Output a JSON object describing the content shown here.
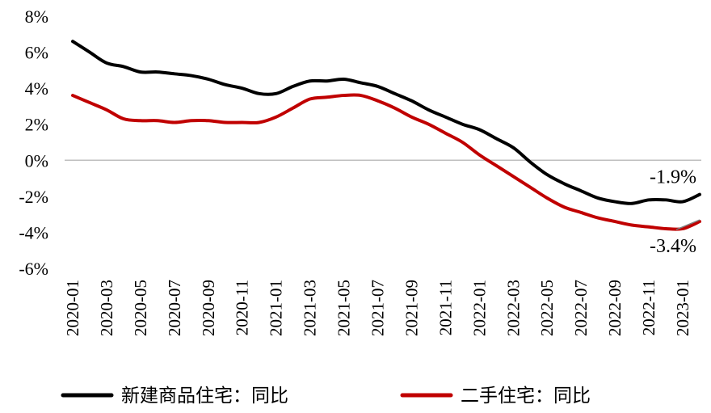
{
  "chart_data": {
    "type": "line",
    "ylim": [
      -6,
      8
    ],
    "yticks": [
      "8%",
      "6%",
      "4%",
      "2%",
      "0%",
      "-2%",
      "-4%",
      "-6%"
    ],
    "ytick_values": [
      8,
      6,
      4,
      2,
      0,
      -2,
      -4,
      -6
    ],
    "x": [
      "2020-01",
      "2020-02",
      "2020-03",
      "2020-04",
      "2020-05",
      "2020-06",
      "2020-07",
      "2020-08",
      "2020-09",
      "2020-10",
      "2020-11",
      "2020-12",
      "2021-01",
      "2021-02",
      "2021-03",
      "2021-04",
      "2021-05",
      "2021-06",
      "2021-07",
      "2021-08",
      "2021-09",
      "2021-10",
      "2021-11",
      "2021-12",
      "2022-01",
      "2022-02",
      "2022-03",
      "2022-04",
      "2022-05",
      "2022-06",
      "2022-07",
      "2022-08",
      "2022-09",
      "2022-10",
      "2022-11",
      "2022-12",
      "2023-01",
      "2023-02"
    ],
    "xticks": [
      "2020-01",
      "2020-03",
      "2020-05",
      "2020-07",
      "2020-09",
      "2020-11",
      "2021-01",
      "2021-03",
      "2021-05",
      "2021-07",
      "2021-09",
      "2021-11",
      "2022-01",
      "2022-03",
      "2022-05",
      "2022-07",
      "2022-09",
      "2022-11",
      "2023-01"
    ],
    "series": [
      {
        "name": "新建商品住宅：同比",
        "color": "#000000",
        "values": [
          6.6,
          6.0,
          5.4,
          5.2,
          4.9,
          4.9,
          4.8,
          4.7,
          4.5,
          4.2,
          4.0,
          3.7,
          3.7,
          4.1,
          4.4,
          4.4,
          4.5,
          4.3,
          4.1,
          3.7,
          3.3,
          2.8,
          2.4,
          2.0,
          1.7,
          1.2,
          0.7,
          -0.1,
          -0.8,
          -1.3,
          -1.7,
          -2.1,
          -2.3,
          -2.4,
          -2.2,
          -2.2,
          -2.3,
          -1.9
        ]
      },
      {
        "name": "二手住宅：同比",
        "color": "#c00000",
        "values": [
          3.6,
          3.2,
          2.8,
          2.3,
          2.2,
          2.2,
          2.1,
          2.2,
          2.2,
          2.1,
          2.1,
          2.1,
          2.4,
          2.9,
          3.4,
          3.5,
          3.6,
          3.6,
          3.3,
          2.9,
          2.4,
          2.0,
          1.5,
          1.0,
          0.3,
          -0.3,
          -0.9,
          -1.5,
          -2.1,
          -2.6,
          -2.9,
          -3.2,
          -3.4,
          -3.6,
          -3.7,
          -3.8,
          -3.8,
          -3.4
        ]
      }
    ],
    "annotations": [
      {
        "text": "-1.9%",
        "series": 0
      },
      {
        "text": "-3.4%",
        "series": 1
      }
    ],
    "grid": false,
    "zero_line": true,
    "legend": "bottom"
  }
}
